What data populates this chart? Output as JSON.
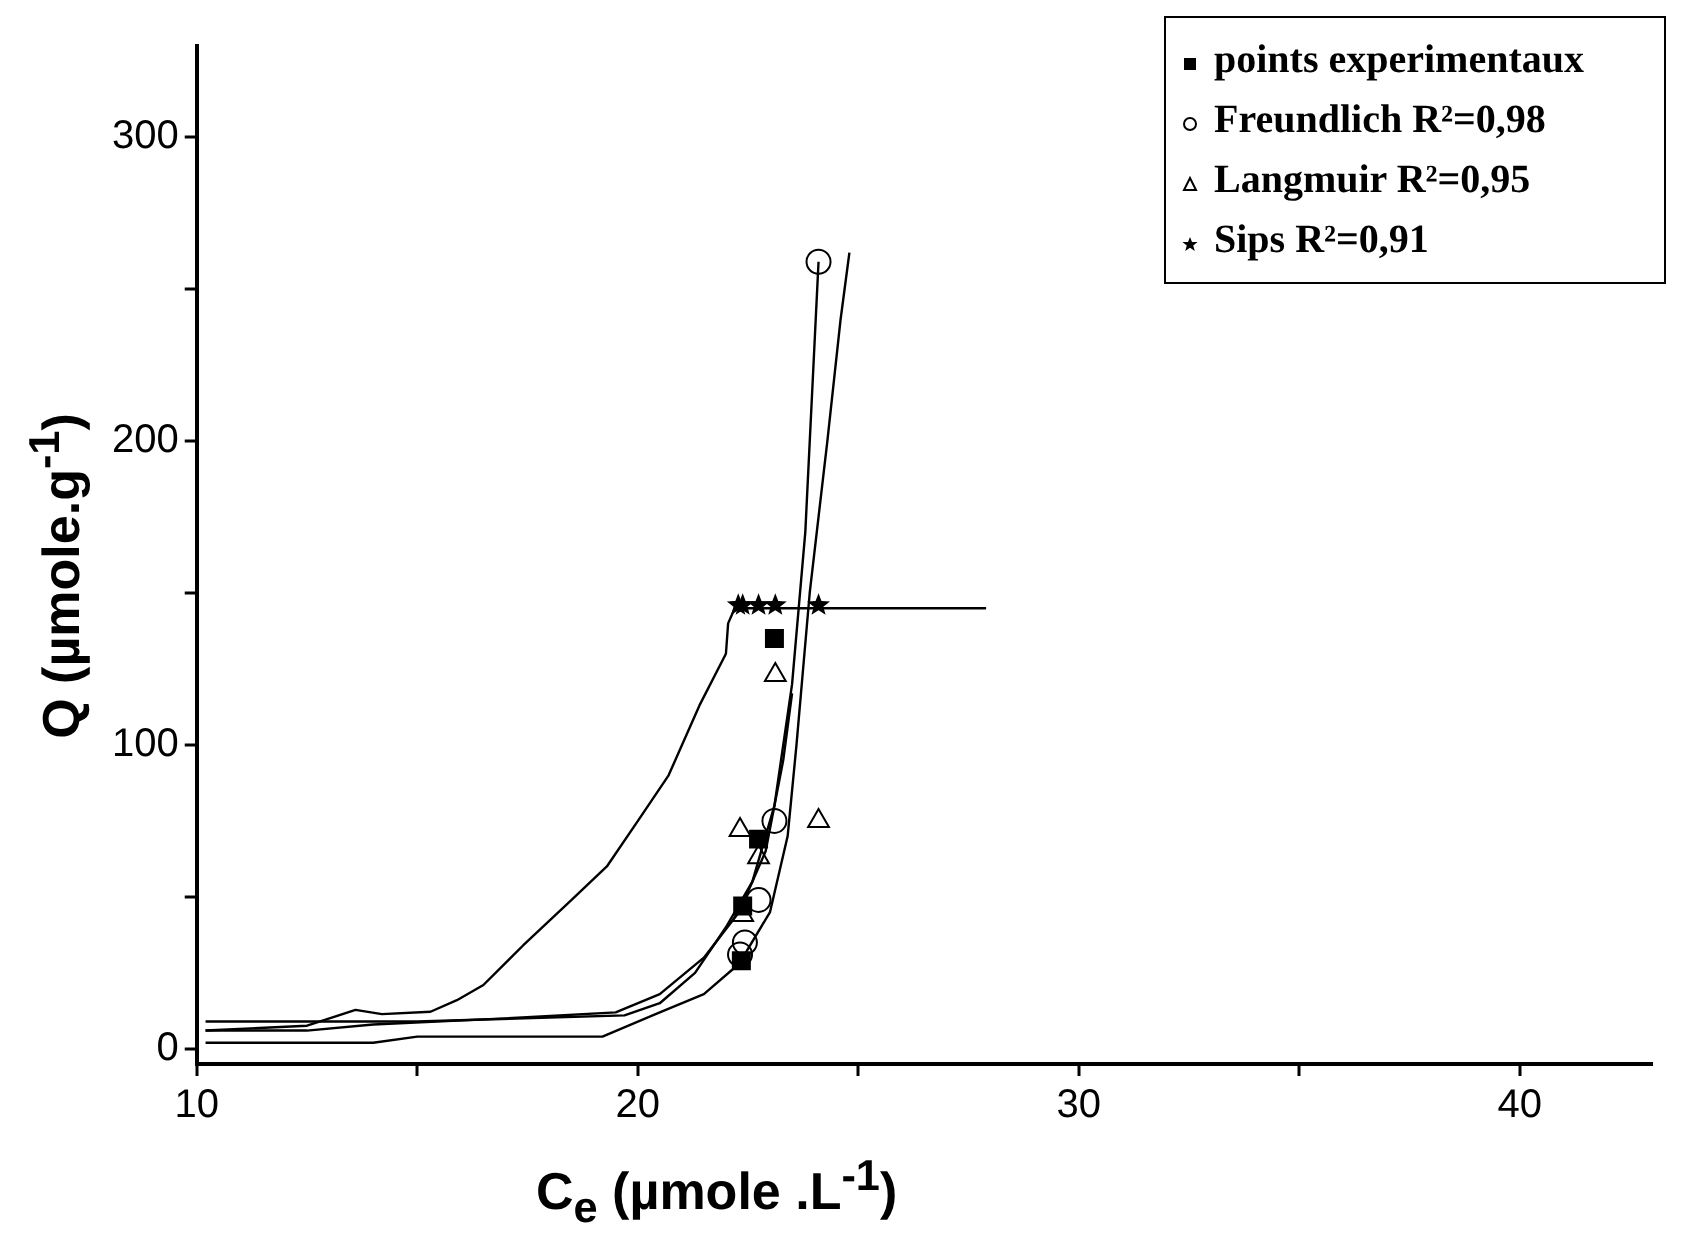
{
  "chart_data": {
    "type": "scatter",
    "xlabel": "C$_{e}$ (µmole .L$^{-1}$)",
    "ylabel": "Q (µmole.g$^{-1}$)",
    "xlim": [
      10,
      43
    ],
    "ylim": [
      -5,
      330
    ],
    "xticks": [
      10,
      {
        "value": 15,
        "label": null
      },
      20,
      {
        "value": 25,
        "label": null
      },
      30,
      {
        "value": 35,
        "label": null
      },
      40
    ],
    "yticks": [
      0,
      {
        "value": 50,
        "label": null
      },
      100,
      {
        "value": 150,
        "label": null
      },
      200,
      {
        "value": 250,
        "label": null
      },
      300
    ],
    "grid": false,
    "legend": "top right",
    "series": [
      {
        "name": "points experimentaux",
        "marker": "square",
        "color": "#000000",
        "x": [
          22.35,
          22.38,
          22.74,
          23.1
        ],
        "values": [
          29,
          47,
          69,
          135
        ]
      },
      {
        "name": "Freundlich R²=0,98",
        "marker": "circle",
        "color": "#000000",
        "x": [
          22.32,
          22.43,
          22.74,
          23.1,
          24.1
        ],
        "values": [
          31,
          35,
          49,
          75,
          259
        ]
      },
      {
        "name": "Langmuir R²=0,95",
        "marker": "triangle",
        "color": "#000000",
        "x": [
          22.38,
          22.74,
          22.32,
          23.12,
          24.1
        ],
        "values": [
          44,
          63,
          72,
          123,
          75
        ]
      },
      {
        "name": "Sips R²=0,91",
        "marker": "star",
        "color": "#000000",
        "x": [
          22.28,
          22.38,
          22.74,
          23.12,
          24.1
        ],
        "values": [
          146,
          146,
          146,
          146,
          146
        ]
      },
      {
        "type": "line",
        "marker": "none",
        "color": "#000000",
        "x": [
          10.2,
          12.5,
          13.6,
          14.2,
          15.3,
          15.9,
          16.5,
          17.4,
          18.5,
          19.3,
          20.05,
          20.7,
          21.4,
          22.0,
          22.05,
          22.2,
          27.9
        ],
        "values": [
          6,
          7.6,
          12.8,
          11.4,
          12.2,
          16,
          21,
          34,
          49,
          60,
          76,
          90,
          113,
          130,
          140,
          145,
          145
        ]
      },
      {
        "type": "line",
        "marker": "none",
        "color": "#000000",
        "x": [
          10.2,
          15,
          19.7,
          20.5,
          21.3,
          22,
          22.6,
          23.1,
          23.5,
          23.8,
          24.1
        ],
        "values": [
          9,
          9,
          11,
          15,
          25,
          40,
          55,
          80,
          120,
          170,
          259
        ]
      },
      {
        "type": "line",
        "marker": "none",
        "color": "#000000",
        "x": [
          10.2,
          14,
          15,
          19.2,
          20.5,
          21.5,
          22.3,
          23.0,
          23.4,
          23.6,
          23.9,
          24.3,
          24.6,
          24.8
        ],
        "values": [
          2,
          2,
          4,
          4,
          12,
          18,
          28,
          45,
          70,
          100,
          150,
          200,
          240,
          262
        ]
      },
      {
        "type": "line",
        "marker": "none",
        "color": "#000000",
        "x": [
          10.2,
          12.5,
          14,
          17,
          19.5,
          20.5,
          21.5,
          22.3,
          22.9,
          23.3,
          23.5
        ],
        "values": [
          6,
          6,
          8,
          10,
          12,
          18,
          30,
          45,
          65,
          95,
          117
        ]
      }
    ]
  }
}
